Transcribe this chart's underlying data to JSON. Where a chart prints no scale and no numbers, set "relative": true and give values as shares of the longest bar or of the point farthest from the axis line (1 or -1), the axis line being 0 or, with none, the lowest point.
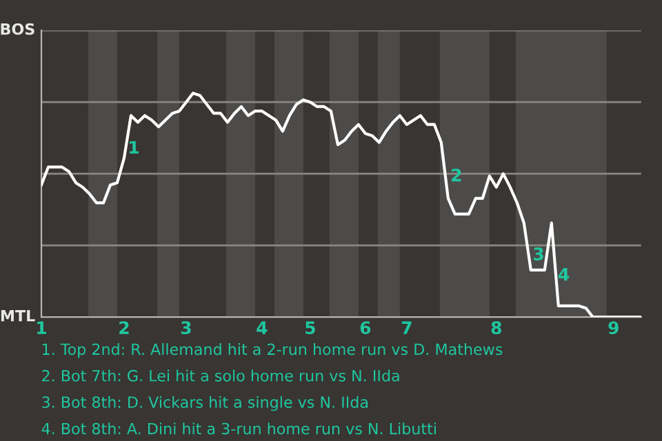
{
  "chart_data": {
    "type": "line",
    "relative": true,
    "categories": [
      "1",
      null,
      null,
      null,
      null,
      null,
      null,
      null,
      null,
      null,
      null,
      null,
      "2",
      null,
      null,
      null,
      null,
      null,
      null,
      null,
      null,
      "3",
      null,
      null,
      null,
      null,
      null,
      null,
      null,
      null,
      null,
      null,
      "4",
      null,
      null,
      null,
      null,
      null,
      null,
      "5",
      null,
      null,
      null,
      null,
      null,
      null,
      null,
      "6",
      null,
      null,
      null,
      null,
      null,
      "7",
      null,
      null,
      null,
      null,
      null,
      null,
      null,
      null,
      null,
      null,
      null,
      null,
      "8",
      null,
      null,
      null,
      null,
      null,
      null,
      null,
      null,
      null,
      null,
      null,
      null,
      null,
      null,
      null,
      null,
      "9",
      null,
      null,
      null,
      null
    ],
    "series": [
      {
        "color": "#ffffff",
        "values": [
          0.59,
          0.67,
          0.67,
          0.67,
          0.65,
          0.6,
          0.58,
          0.55,
          0.51,
          0.51,
          0.59,
          0.6,
          0.71,
          0.9,
          0.87,
          0.9,
          0.88,
          0.85,
          0.88,
          0.91,
          0.92,
          0.96,
          1,
          0.99,
          0.95,
          0.91,
          0.91,
          0.87,
          0.91,
          0.94,
          0.9,
          0.92,
          0.92,
          0.9,
          0.88,
          0.83,
          0.9,
          0.95,
          0.97,
          0.96,
          0.94,
          0.94,
          0.92,
          0.77,
          0.79,
          0.83,
          0.86,
          0.82,
          0.81,
          0.78,
          0.83,
          0.87,
          0.9,
          0.86,
          0.88,
          0.9,
          0.86,
          0.86,
          0.78,
          0.53,
          0.46,
          0.46,
          0.46,
          0.53,
          0.53,
          0.63,
          0.58,
          0.64,
          0.58,
          0.51,
          0.42,
          0.21,
          0.21,
          0.21,
          0.42,
          0.05,
          0.05,
          0.05,
          0.05,
          0.04,
          0,
          0,
          0,
          0,
          0,
          0,
          0,
          0
        ]
      }
    ],
    "grid": "y",
    "marker": "none",
    "line_style": "solid",
    "annotations": [
      "BOS",
      "MTL",
      "1",
      "2",
      "3",
      "4",
      "1. Top 2nd: R. Allemand hit a 2-run home run vs D. Mathews",
      "2. Bot 7th: G. Lei hit a solo home run vs N. IIda",
      "3. Bot 8th: D. Vickars hit a single vs N. IIda",
      "4. Bot 8th: A. Dini hit a 3-run home run vs N. Libutti"
    ]
  }
}
